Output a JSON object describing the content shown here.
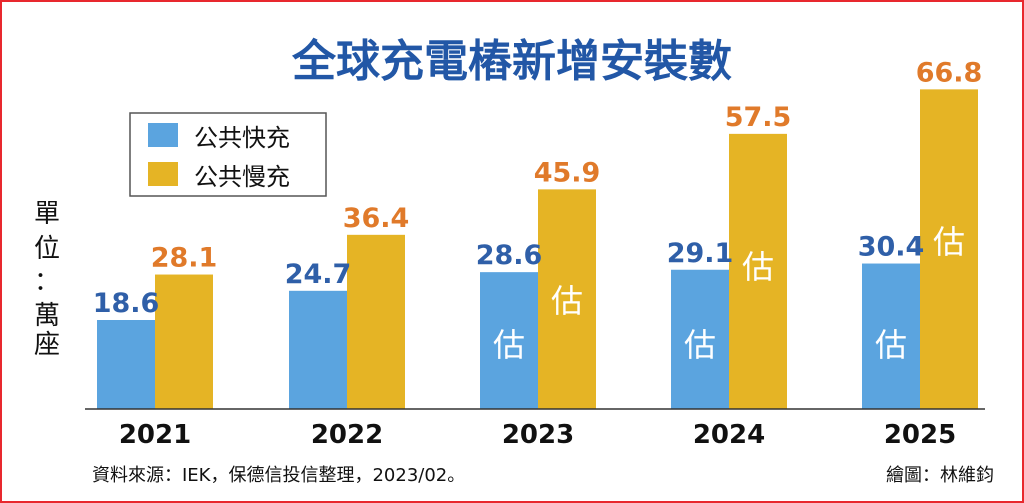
{
  "chart_data": {
    "type": "bar",
    "title": "全球充電樁新增安裝數",
    "unit_label": "單位：萬座",
    "ylabel_chars": [
      "單",
      "位",
      "：",
      "萬",
      "座"
    ],
    "categories": [
      "2021",
      "2022",
      "2023",
      "2024",
      "2025"
    ],
    "series": [
      {
        "name": "公共快充",
        "color": "#5ba4df",
        "values": [
          18.6,
          24.7,
          28.6,
          29.1,
          30.4
        ],
        "value_labels": [
          "18.6",
          "24.7",
          "28.6",
          "29.1",
          "30.4"
        ],
        "estimated": [
          false,
          false,
          true,
          true,
          true
        ]
      },
      {
        "name": "公共慢充",
        "color": "#e5b425",
        "values": [
          28.1,
          36.4,
          45.9,
          57.5,
          66.8
        ],
        "value_labels": [
          "28.1",
          "36.4",
          "45.9",
          "57.5",
          "66.8"
        ],
        "estimated": [
          false,
          false,
          true,
          true,
          true
        ]
      }
    ],
    "estimate_mark": "估",
    "ylim": [
      0,
      70
    ],
    "grid": false,
    "legend_position": "top-left",
    "value_label_colors": [
      "#2f5fa8",
      "#e07a2a"
    ],
    "title_color": "#2257a6"
  },
  "footer": {
    "source": "資料來源：IEK，保德信投信整理，2023/02。",
    "credit": "繪圖：林維鈞"
  }
}
